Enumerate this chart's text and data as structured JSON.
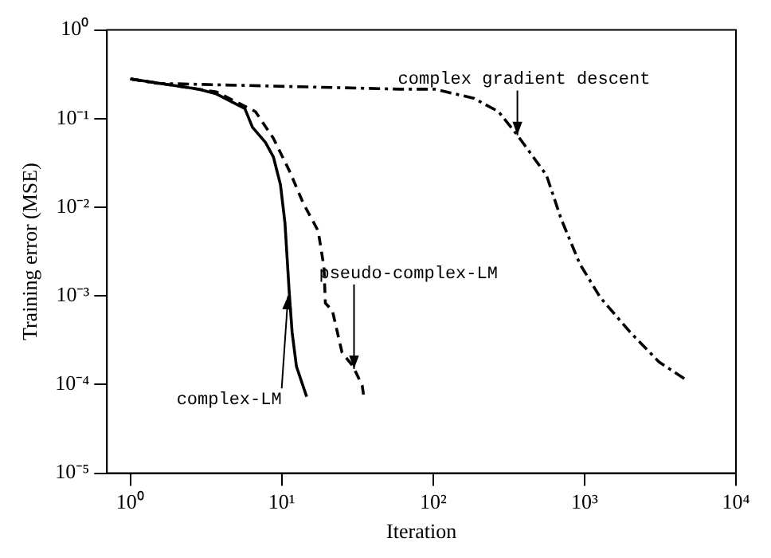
{
  "chart_data": {
    "type": "line",
    "xlabel": "Iteration",
    "ylabel": "Training error (MSE)",
    "log": "xy",
    "grid": false,
    "legend": false,
    "marker": "none",
    "xlim": [
      0.7,
      10000
    ],
    "xticks": [
      {
        "value": 1,
        "label": "10⁰"
      },
      {
        "value": 10,
        "label": "10¹"
      },
      {
        "value": 100,
        "label": "10²"
      },
      {
        "value": 1000,
        "label": "10³"
      },
      {
        "value": 10000,
        "label": "10⁴"
      }
    ],
    "ylim": [
      1e-05,
      1
    ],
    "yticks": [
      {
        "value": 1e-05,
        "label": "10⁻⁵"
      },
      {
        "value": 0.0001,
        "label": "10⁻⁴"
      },
      {
        "value": 0.001,
        "label": "10⁻³"
      },
      {
        "value": 0.01,
        "label": "10⁻²"
      },
      {
        "value": 0.1,
        "label": "10⁻¹"
      },
      {
        "value": 1,
        "label": "10⁰"
      }
    ],
    "series": [
      {
        "color": "#000000",
        "line_style": "solid",
        "x": [
          1,
          2.8,
          3.7,
          5.7,
          6.4,
          7.8,
          8.8,
          9.8,
          10.5,
          11.2,
          11.7,
          12.5,
          14.6
        ],
        "values": [
          0.28,
          0.215,
          0.19,
          0.13,
          0.08,
          0.054,
          0.037,
          0.018,
          0.0066,
          0.0011,
          0.00039,
          0.00016,
          7.3e-05
        ]
      },
      {
        "color": "#000000",
        "line_style": "dashed",
        "x": [
          1,
          3.7,
          6.7,
          8.8,
          11.2,
          13.9,
          17.4,
          19,
          19.4,
          21.6,
          25,
          29.6,
          34,
          35
        ],
        "values": [
          0.28,
          0.2,
          0.12,
          0.06,
          0.026,
          0.011,
          0.0054,
          0.0021,
          0.00083,
          0.00068,
          0.00023,
          0.00016,
          9.7e-05,
          6.8e-05
        ]
      },
      {
        "color": "#000000",
        "line_style": "dashdot",
        "x": [
          1,
          1.5,
          61,
          102,
          185,
          270,
          360,
          560,
          700,
          930,
          1270,
          2000,
          3100,
          4800
        ],
        "values": [
          0.28,
          0.25,
          0.215,
          0.215,
          0.17,
          0.12,
          0.065,
          0.023,
          0.0074,
          0.0023,
          0.00096,
          0.00039,
          0.00018,
          0.00011
        ]
      }
    ],
    "annotations": [
      {
        "text": "complex-LM",
        "x": 11,
        "y": 0.001
      },
      {
        "text": "pseudo-complex-LM",
        "x": 30,
        "y": 0.00015
      },
      {
        "text": "complex gradient descent",
        "x": 360,
        "y": 0.065
      }
    ]
  }
}
